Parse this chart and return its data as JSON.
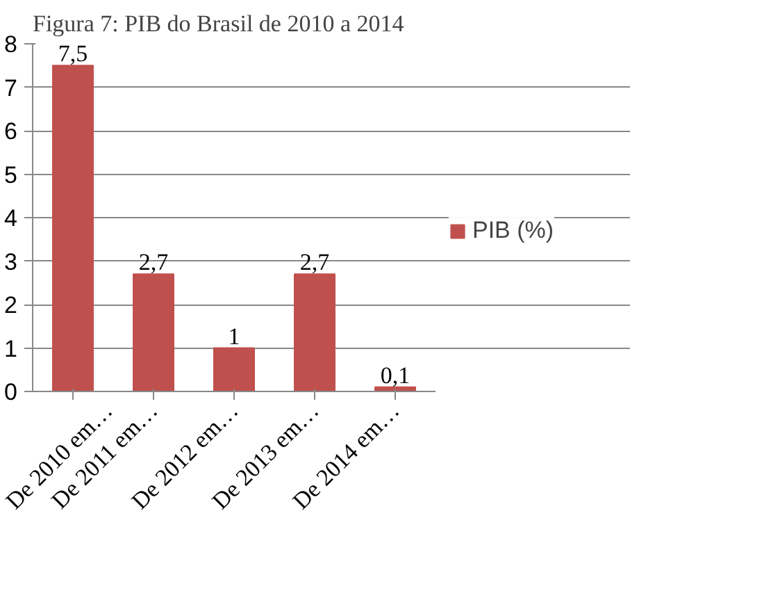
{
  "chart_data": {
    "type": "bar",
    "title": "Figura 7: PIB do Brasil de 2010 a 2014",
    "categories": [
      "De 2010 em…",
      "De 2011 em…",
      "De 2012 em…",
      "De 2013 em…",
      "De 2014 em…"
    ],
    "series": [
      {
        "name": "PIB (%)",
        "color": "#c0504d",
        "values": [
          7.5,
          2.7,
          1,
          2.7,
          0.1
        ],
        "value_labels": [
          "7,5",
          "2,7",
          "1",
          "2,7",
          "0,1"
        ]
      }
    ],
    "ylim": [
      0,
      8
    ],
    "yticks": [
      0,
      1,
      2,
      3,
      4,
      5,
      6,
      7,
      8
    ],
    "grid": "y",
    "legend": "right"
  }
}
